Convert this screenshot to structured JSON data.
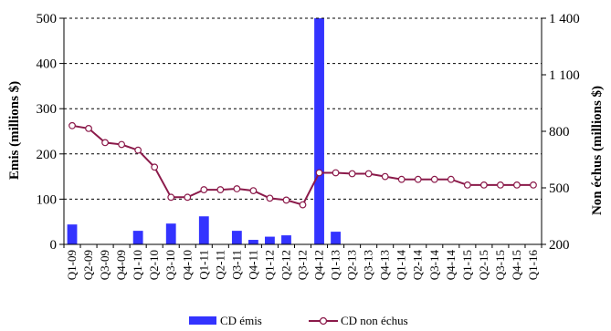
{
  "chart_data": {
    "type": "bar+line",
    "categories": [
      "Q1-09",
      "Q2-09",
      "Q3-09",
      "Q4-09",
      "Q1-10",
      "Q2-10",
      "Q3-10",
      "Q4-10",
      "Q1-11",
      "Q2-11",
      "Q3-11",
      "Q4-11",
      "Q1-12",
      "Q2-12",
      "Q3-12",
      "Q4-12",
      "Q1-13",
      "Q2-13",
      "Q3-13",
      "Q4-13",
      "Q1-14",
      "Q2-14",
      "Q3-14",
      "Q4-14",
      "Q1-15",
      "Q2-15",
      "Q3-15",
      "Q4-15",
      "Q1-16"
    ],
    "series": [
      {
        "name": "CD émis",
        "type": "bar",
        "axis": "left",
        "color": "#3333ff",
        "values": [
          44,
          0,
          0,
          0,
          30,
          0,
          46,
          0,
          62,
          0,
          30,
          10,
          17,
          20,
          0,
          500,
          28,
          0,
          0,
          0,
          0,
          0,
          0,
          0,
          0,
          0,
          0,
          0,
          0
        ]
      },
      {
        "name": "CD non échus",
        "type": "line",
        "axis": "right",
        "color": "#8b1a4a",
        "values": [
          830,
          815,
          740,
          730,
          700,
          610,
          450,
          450,
          490,
          490,
          495,
          485,
          445,
          435,
          410,
          580,
          580,
          575,
          575,
          560,
          545,
          545,
          545,
          545,
          515,
          515,
          515,
          515,
          515
        ]
      }
    ],
    "ylabel": "Emis  (millions $)",
    "y2label": "Non échus  (millions $)",
    "ylim": [
      0,
      500
    ],
    "y2lim": [
      200,
      1400
    ],
    "yticks": [
      "0",
      "100",
      "200",
      "300",
      "400",
      "500"
    ],
    "y2ticks": [
      "200",
      "500",
      "800",
      "1 100",
      "1 400"
    ],
    "grid": "horizontal dashed",
    "legend_position": "bottom"
  }
}
